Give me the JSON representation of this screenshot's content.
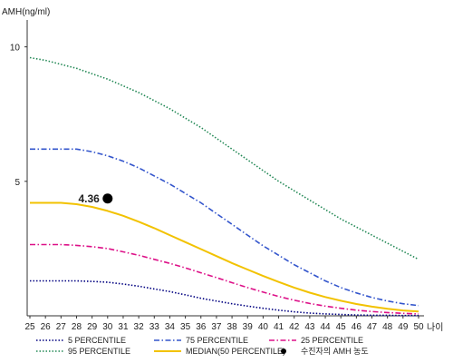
{
  "chart_data": {
    "type": "line",
    "title": "",
    "ylabel": "AMH(ng/ml)",
    "xlabel": "나이",
    "xlim": [
      25,
      50
    ],
    "ylim": [
      0,
      11
    ],
    "x_ticks": [
      25,
      26,
      27,
      28,
      29,
      30,
      31,
      32,
      33,
      34,
      35,
      36,
      37,
      38,
      39,
      40,
      41,
      42,
      43,
      44,
      45,
      46,
      47,
      48,
      49,
      50
    ],
    "y_ticks": [
      5,
      10
    ],
    "grid": false,
    "legend_position": "bottom",
    "x": [
      25,
      26,
      27,
      28,
      29,
      30,
      31,
      32,
      33,
      34,
      35,
      36,
      37,
      38,
      39,
      40,
      41,
      42,
      43,
      44,
      45,
      46,
      47,
      48,
      49,
      50
    ],
    "series": [
      {
        "name": "5 PERCENTILE",
        "color": "#000080",
        "dash": "dotted",
        "values": [
          1.3,
          1.3,
          1.3,
          1.3,
          1.28,
          1.25,
          1.18,
          1.1,
          1.0,
          0.9,
          0.78,
          0.65,
          0.55,
          0.45,
          0.36,
          0.28,
          0.21,
          0.15,
          0.1,
          0.07,
          0.05,
          0.03,
          0.02,
          0.02,
          0.01,
          0.01
        ]
      },
      {
        "name": "75 PERCENTILE",
        "color": "#3355cc",
        "dash": "dashdot",
        "values": [
          6.2,
          6.2,
          6.2,
          6.2,
          6.1,
          5.95,
          5.75,
          5.5,
          5.2,
          4.9,
          4.55,
          4.2,
          3.8,
          3.4,
          3.0,
          2.6,
          2.25,
          1.9,
          1.6,
          1.3,
          1.05,
          0.85,
          0.68,
          0.55,
          0.45,
          0.38
        ]
      },
      {
        "name": "25 PERCENTILE",
        "color": "#dd1188",
        "dash": "dashdot",
        "values": [
          2.65,
          2.65,
          2.65,
          2.62,
          2.57,
          2.5,
          2.38,
          2.25,
          2.1,
          1.95,
          1.78,
          1.6,
          1.42,
          1.23,
          1.05,
          0.88,
          0.72,
          0.58,
          0.46,
          0.36,
          0.28,
          0.21,
          0.16,
          0.12,
          0.09,
          0.07
        ]
      },
      {
        "name": "95 PERCENTILE",
        "color": "#228855",
        "dash": "dotted",
        "values": [
          9.6,
          9.5,
          9.35,
          9.2,
          9.0,
          8.8,
          8.55,
          8.3,
          8.0,
          7.7,
          7.35,
          7.0,
          6.6,
          6.2,
          5.8,
          5.4,
          5.0,
          4.65,
          4.3,
          3.95,
          3.6,
          3.3,
          3.0,
          2.7,
          2.4,
          2.1
        ]
      },
      {
        "name": "MEDIAN(50 PERCENTILE)",
        "color": "#f2c200",
        "dash": "solid",
        "values": [
          4.2,
          4.2,
          4.2,
          4.15,
          4.05,
          3.9,
          3.72,
          3.5,
          3.26,
          3.0,
          2.74,
          2.48,
          2.22,
          1.96,
          1.72,
          1.48,
          1.26,
          1.05,
          0.86,
          0.7,
          0.56,
          0.44,
          0.34,
          0.26,
          0.2,
          0.16
        ]
      }
    ],
    "patient_point": {
      "name": "수진자의 AMH 농도",
      "x": 30,
      "y": 4.36,
      "label": "4.36"
    }
  }
}
